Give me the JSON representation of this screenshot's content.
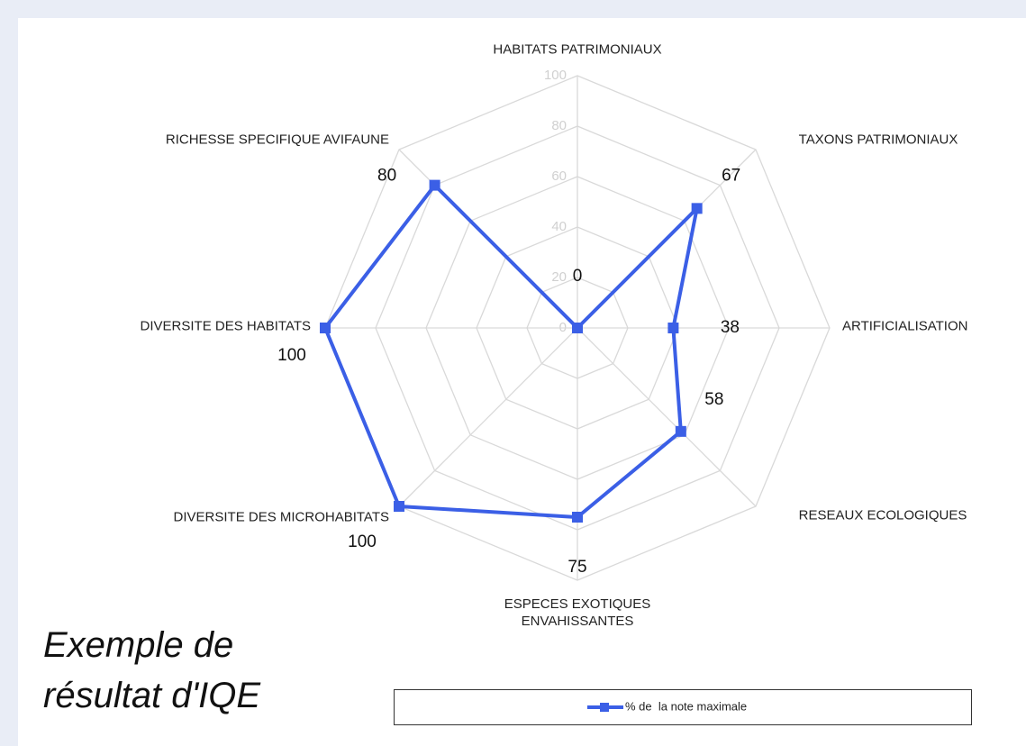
{
  "chart_data": {
    "type": "radar",
    "caption": "Exemple de résultat d'IQE",
    "categories": [
      "HABITATS PATRIMONIAUX",
      "TAXONS PATRIMONIAUX",
      "ARTIFICIALISATION",
      "RESEAUX ECOLOGIQUES",
      "ESPECES EXOTIQUES ENVAHISSANTES",
      "DIVERSITE DES MICROHABITATS",
      "DIVERSITE DES HABITATS",
      "RICHESSE SPECIFIQUE AVIFAUNE"
    ],
    "series": [
      {
        "name": "% de  la note maximale",
        "color": "#3b5fe6",
        "values": [
          0,
          67,
          38,
          58,
          75,
          100,
          100,
          80
        ]
      }
    ],
    "ylim": [
      0,
      100
    ],
    "yticks": [
      0,
      20,
      40,
      60,
      80,
      100
    ],
    "grid": true,
    "legend": "bottom"
  }
}
